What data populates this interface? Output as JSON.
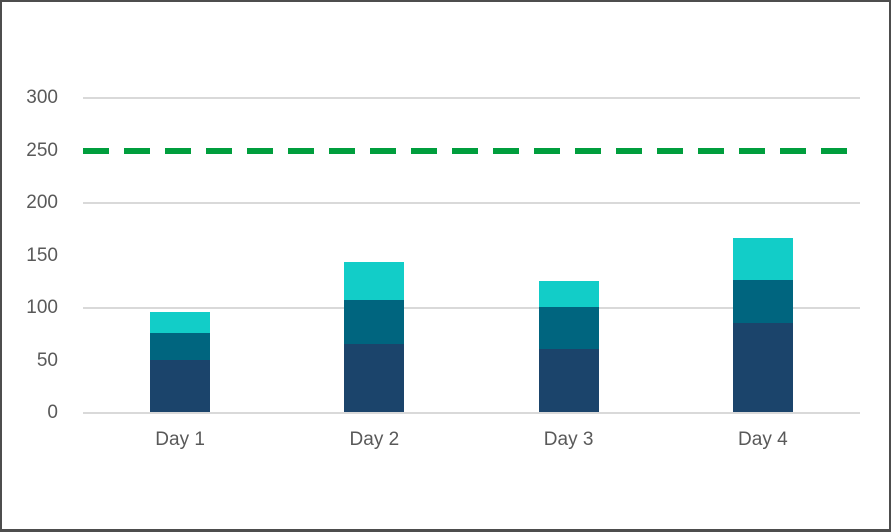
{
  "frame": {
    "border_color": "#4d4d4d",
    "background_color": "#ffffff"
  },
  "chart_data": {
    "type": "bar",
    "stacked": true,
    "categories": [
      "Day 1",
      "Day 2",
      "Day 3",
      "Day 4"
    ],
    "series": [
      {
        "name": "navy-bottom-segment",
        "color": "#1b446b",
        "values": [
          50,
          65,
          60,
          85
        ]
      },
      {
        "name": "teal-middle-segment",
        "color": "#00657f",
        "values": [
          25,
          42,
          40,
          41
        ]
      },
      {
        "name": "cyan-top-segment",
        "color": "#12cdc8",
        "values": [
          20,
          36,
          25,
          40
        ]
      }
    ],
    "reference_line": {
      "value": 250,
      "color": "#009e3d",
      "style": "dashed"
    },
    "y_axis": {
      "ticks": [
        0,
        50,
        100,
        150,
        200,
        250,
        300
      ],
      "gridline_values": [
        0,
        100,
        200,
        300
      ],
      "range": [
        0,
        300
      ],
      "label_color": "#595959"
    },
    "x_axis": {
      "label_color": "#595959"
    },
    "gridline_color": "#d9d9d9",
    "legend": "none",
    "title": ""
  }
}
